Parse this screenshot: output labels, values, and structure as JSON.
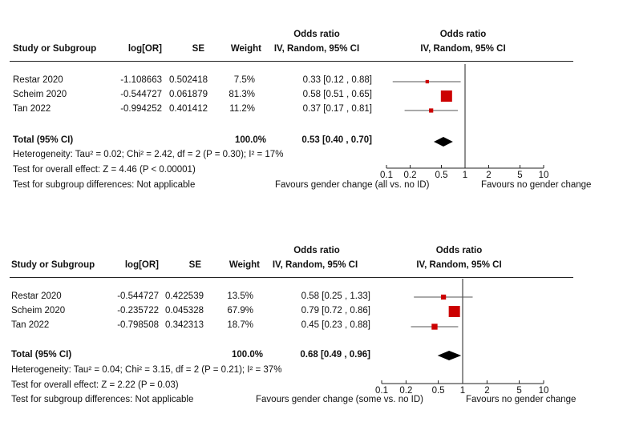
{
  "columns": {
    "study": "Study or Subgroup",
    "logor": "log[OR]",
    "se": "SE",
    "weight": "Weight",
    "or_title": "Odds ratio",
    "or_method": "IV, Random, 95% CI",
    "plot_title": "Odds ratio",
    "plot_method": "IV, Random, 95% CI"
  },
  "axis_ticks": [
    "0.1",
    "0.2",
    "0.5",
    "1",
    "2",
    "5",
    "10"
  ],
  "colors": {
    "marker": "#cc0000",
    "diamond": "#000000",
    "lines": "#222222"
  },
  "chart_data": [
    {
      "type": "forest",
      "xscale": "log",
      "xlim": [
        0.1,
        10
      ],
      "xticks": [
        0.1,
        0.2,
        0.5,
        1,
        2,
        5,
        10
      ],
      "favours_left": "Favours gender change (all vs. no ID)",
      "favours_right": "Favours no gender change",
      "studies": [
        {
          "name": "Restar 2020",
          "logor": "-1.108663",
          "se": "0.502418",
          "weight": "7.5%",
          "ci_text": "0.33 [0.12 , 0.88]",
          "or": 0.33,
          "lo": 0.12,
          "hi": 0.88,
          "w": 7.5
        },
        {
          "name": "Scheim 2020",
          "logor": "-0.544727",
          "se": "0.061879",
          "weight": "81.3%",
          "ci_text": "0.58 [0.51 , 0.65]",
          "or": 0.58,
          "lo": 0.51,
          "hi": 0.65,
          "w": 81.3
        },
        {
          "name": "Tan 2022",
          "logor": "-0.994252",
          "se": "0.401412",
          "weight": "11.2%",
          "ci_text": "0.37 [0.17 , 0.81]",
          "or": 0.37,
          "lo": 0.17,
          "hi": 0.81,
          "w": 11.2
        }
      ],
      "total": {
        "label": "Total (95% CI)",
        "weight": "100.0%",
        "ci_text": "0.53 [0.40 , 0.70]",
        "or": 0.53,
        "lo": 0.4,
        "hi": 0.7
      },
      "heterogeneity": "Heterogeneity: Tau² = 0.02; Chi² = 2.42, df = 2 (P = 0.30); I² = 17%",
      "overall_effect": "Test for overall effect: Z = 4.46 (P < 0.00001)",
      "subgroup_diff": "Test for subgroup differences: Not applicable"
    },
    {
      "type": "forest",
      "xscale": "log",
      "xlim": [
        0.1,
        10
      ],
      "xticks": [
        0.1,
        0.2,
        0.5,
        1,
        2,
        5,
        10
      ],
      "favours_left": "Favours gender change (some vs. no ID)",
      "favours_right": "Favours no gender change",
      "studies": [
        {
          "name": "Restar 2020",
          "logor": "-0.544727",
          "se": "0.422539",
          "weight": "13.5%",
          "ci_text": "0.58 [0.25 , 1.33]",
          "or": 0.58,
          "lo": 0.25,
          "hi": 1.33,
          "w": 13.5
        },
        {
          "name": "Scheim 2020",
          "logor": "-0.235722",
          "se": "0.045328",
          "weight": "67.9%",
          "ci_text": "0.79 [0.72 , 0.86]",
          "or": 0.79,
          "lo": 0.72,
          "hi": 0.86,
          "w": 67.9
        },
        {
          "name": "Tan 2022",
          "logor": "-0.798508",
          "se": "0.342313",
          "weight": "18.7%",
          "ci_text": "0.45 [0.23 , 0.88]",
          "or": 0.45,
          "lo": 0.23,
          "hi": 0.88,
          "w": 18.7
        }
      ],
      "total": {
        "label": "Total (95% CI)",
        "weight": "100.0%",
        "ci_text": "0.68 [0.49 , 0.96]",
        "or": 0.68,
        "lo": 0.49,
        "hi": 0.96
      },
      "heterogeneity": "Heterogeneity: Tau² = 0.04; Chi² = 3.15, df = 2 (P = 0.21); I² = 37%",
      "overall_effect": "Test for overall effect: Z = 2.22 (P = 0.03)",
      "subgroup_diff": "Test for subgroup differences: Not applicable"
    }
  ]
}
